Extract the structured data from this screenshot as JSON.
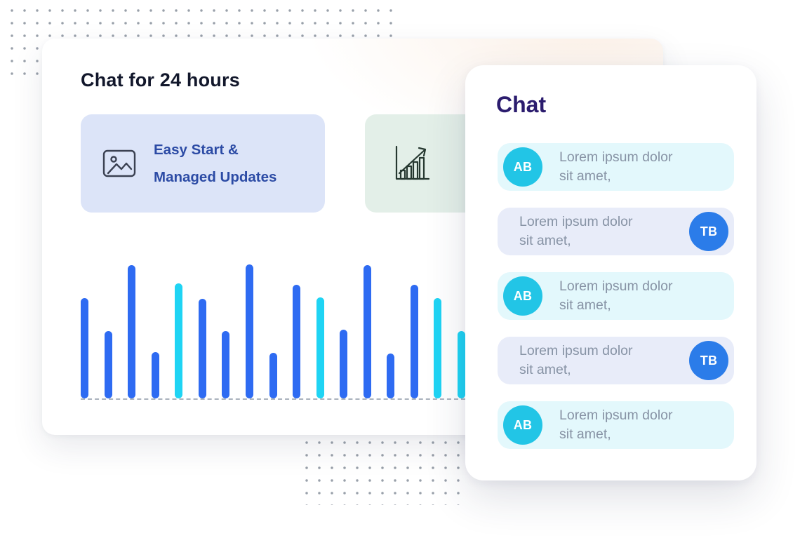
{
  "colors": {
    "accent_blue": "#2e6bf2",
    "accent_cyan": "#1fd4f4",
    "dot_color": "#99a0aa",
    "baseline_color": "#aab2bd",
    "main_title": "#12172b",
    "feature1_bg": "#dce4f8",
    "feature2_bg": "#e3efe8",
    "feature_text": "#2c4ba5",
    "feature_icon_stroke": "#3b4152",
    "growth_icon_stroke": "#263830",
    "chat_title": "#2b1c6e",
    "bubble_cyan_bg": "#e3f8fc",
    "bubble_lavender_bg": "#e8ecf9",
    "avatar_cyan": "#22c5e6",
    "avatar_blue": "#2b7ce9",
    "msg_text": "#8793a5",
    "card_glow": "#fbf0e7"
  },
  "main_card": {
    "title": "Chat for 24 hours",
    "features": [
      {
        "icon": "image-icon",
        "label_line1": "Easy Start &",
        "label_line2": "Managed Updates"
      },
      {
        "icon": "growth-chart-icon"
      }
    ]
  },
  "chart_data": {
    "type": "bar",
    "title": "",
    "xlabel": "",
    "ylabel": "",
    "unit": "px",
    "ylim": [
      0,
      200
    ],
    "baseline": "dashed",
    "values": [
      143,
      96,
      190,
      66,
      164,
      142,
      96,
      191,
      65,
      162,
      144,
      98,
      190,
      64,
      162,
      143,
      96
    ],
    "bar_colors": [
      "blue",
      "blue",
      "blue",
      "blue",
      "cyan",
      "blue",
      "blue",
      "blue",
      "blue",
      "blue",
      "cyan",
      "blue",
      "blue",
      "blue",
      "blue",
      "cyan",
      "cyan"
    ]
  },
  "chat_card": {
    "title": "Chat",
    "messages": [
      {
        "initials": "AB",
        "side": "left",
        "text_line1": "Lorem ipsum dolor",
        "text_line2": "sit amet,"
      },
      {
        "initials": "TB",
        "side": "right",
        "text_line1": "Lorem ipsum dolor",
        "text_line2": "sit amet,"
      },
      {
        "initials": "AB",
        "side": "left",
        "text_line1": "Lorem ipsum dolor",
        "text_line2": "sit amet,"
      },
      {
        "initials": "TB",
        "side": "right",
        "text_line1": "Lorem ipsum dolor",
        "text_line2": "sit amet,"
      },
      {
        "initials": "AB",
        "side": "left",
        "text_line1": "Lorem ipsum dolor",
        "text_line2": "sit amet,"
      }
    ]
  }
}
